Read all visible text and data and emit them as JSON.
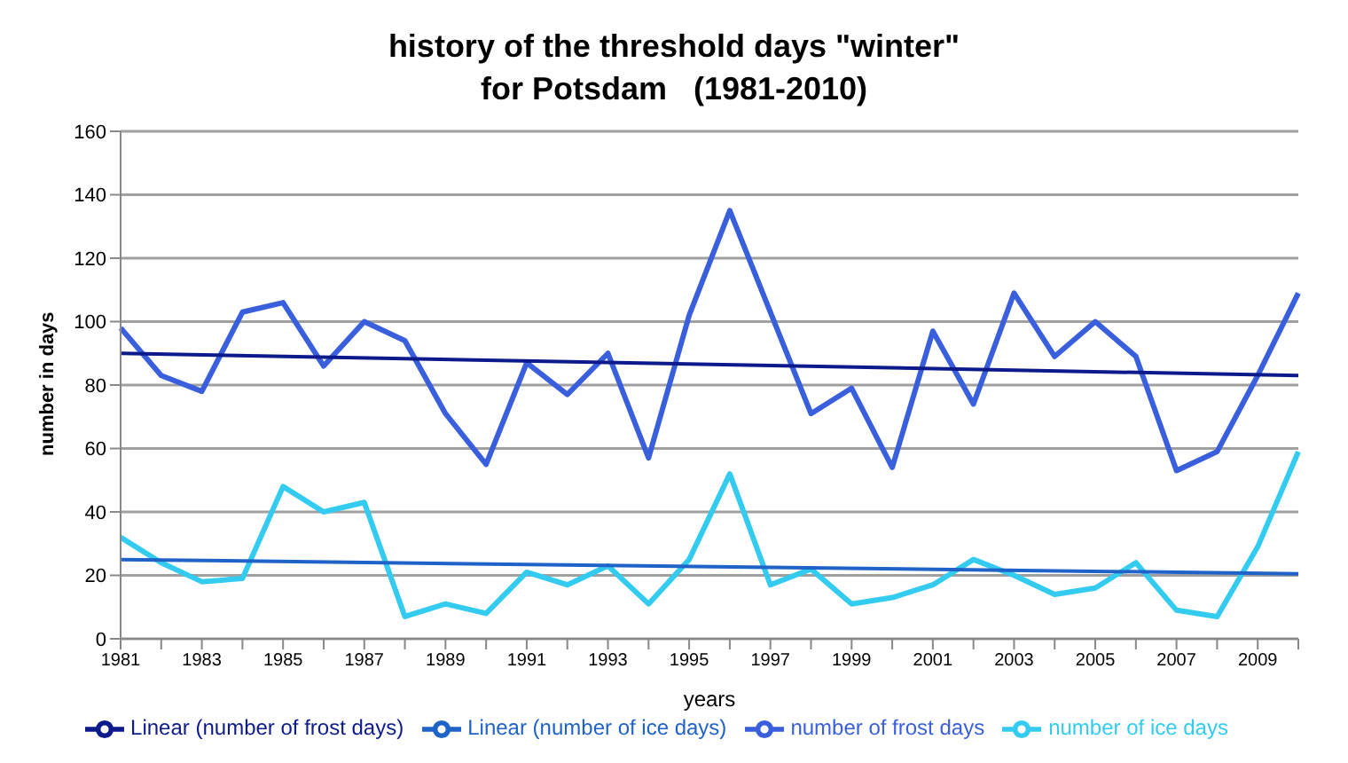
{
  "chart_data": {
    "type": "line",
    "title": "history of the threshold days \"winter\"\nfor Potsdam   (1981-2010)",
    "xlabel": "years",
    "ylabel": "number in days",
    "categories": [
      "1981",
      null,
      "1983",
      null,
      "1985",
      null,
      "1987",
      null,
      "1989",
      null,
      "1991",
      null,
      "1993",
      null,
      "1995",
      null,
      "1997",
      null,
      "1999",
      null,
      "2001",
      null,
      "2003",
      null,
      "2005",
      null,
      "2007",
      null,
      "2009",
      null
    ],
    "series": [
      {
        "name": "number of frost days",
        "color": "#3a5fdc",
        "values": [
          98,
          83,
          78,
          103,
          106,
          86,
          100,
          94,
          71,
          55,
          87,
          77,
          90,
          57,
          102,
          135,
          103,
          71,
          79,
          54,
          97,
          74,
          109,
          89,
          100,
          89,
          53,
          59,
          83,
          109
        ]
      },
      {
        "name": "number of ice days",
        "color": "#33ccf0",
        "values": [
          32,
          24,
          18,
          19,
          48,
          40,
          43,
          7,
          11,
          8,
          21,
          17,
          23,
          11,
          25,
          52,
          17,
          22,
          11,
          13,
          17,
          25,
          20,
          14,
          16,
          24,
          9,
          7,
          29,
          59
        ]
      },
      {
        "name": "Linear (number of frost days)",
        "color": "#0d1a8c",
        "values": [
          90,
          null,
          null,
          null,
          null,
          null,
          null,
          null,
          null,
          null,
          null,
          null,
          null,
          null,
          null,
          null,
          null,
          null,
          null,
          null,
          null,
          null,
          null,
          null,
          null,
          null,
          null,
          null,
          null,
          83
        ]
      },
      {
        "name": "Linear (number of ice days)",
        "color": "#1f62c8",
        "values": [
          25,
          null,
          null,
          null,
          null,
          null,
          null,
          null,
          null,
          null,
          null,
          null,
          null,
          null,
          null,
          null,
          null,
          null,
          null,
          null,
          null,
          null,
          null,
          null,
          null,
          null,
          null,
          null,
          null,
          20.5
        ]
      }
    ],
    "ylim": [
      0,
      160
    ],
    "yticks": [
      0,
      20,
      40,
      60,
      80,
      100,
      120,
      140,
      160
    ],
    "grid": "y",
    "legend": "bottom",
    "marker": "none",
    "line_style": "solid"
  }
}
